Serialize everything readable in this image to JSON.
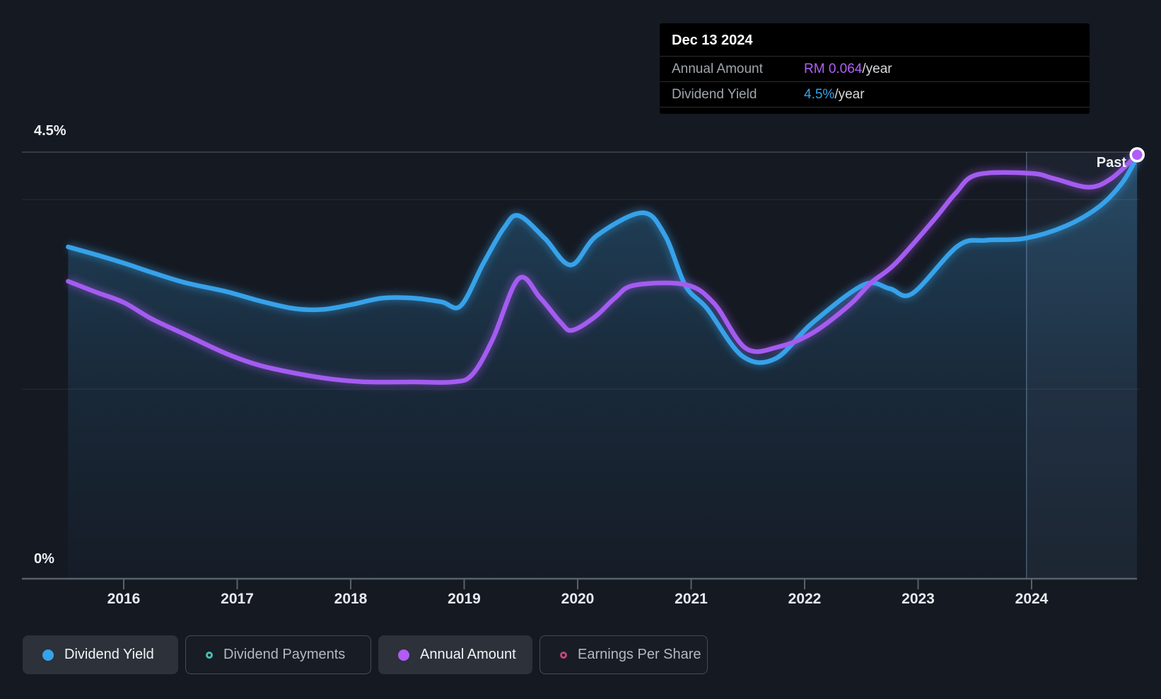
{
  "tooltip": {
    "date": "Dec 13 2024",
    "rows": [
      {
        "label": "Annual Amount",
        "value": "RM 0.064",
        "suffix": "/year",
        "value_color": "#b060f5"
      },
      {
        "label": "Dividend Yield",
        "value": "4.5%",
        "suffix": "/year",
        "value_color": "#37a2ea"
      }
    ]
  },
  "axis": {
    "y_top_label": "4.5%",
    "y_bottom_label": "0%",
    "past_label": "Past",
    "years": [
      "2016",
      "2017",
      "2018",
      "2019",
      "2020",
      "2021",
      "2022",
      "2023",
      "2024"
    ]
  },
  "legend": {
    "items": [
      {
        "label": "Dividend Yield",
        "marker": "dot",
        "color": "#37a2ea",
        "active": true
      },
      {
        "label": "Dividend Payments",
        "marker": "ring",
        "color": "#46c0b2",
        "active": false
      },
      {
        "label": "Annual Amount",
        "marker": "dot",
        "color": "#b05cf5",
        "active": true
      },
      {
        "label": "Earnings Per Share",
        "marker": "ring",
        "color": "#c2457d",
        "active": false
      }
    ],
    "widths": [
      220,
      263,
      218,
      238
    ]
  },
  "colors": {
    "background": "#151922",
    "dividend_yield_line": "#37a2ea",
    "annual_amount_line": "#a45cf0",
    "endpoint_fill": "#b05cf5",
    "endpoint_ring": "#ffffff",
    "grid_major": "rgba(255,255,255,0.20)",
    "grid_minor": "rgba(255,255,255,0.09)",
    "axis_line": "#5a616b",
    "fill_top": "rgba(56,152,212,0.34)",
    "fill_mid": "rgba(48,130,185,0.15)",
    "fill_bottom": "rgba(40,110,160,0.04)",
    "past_band": "rgba(173,205,255,0.055)",
    "divider": "rgba(160,200,240,0.35)"
  },
  "chart_data": {
    "type": "area",
    "title": "Dividend history chart",
    "x_ticks": [
      2016,
      2017,
      2018,
      2019,
      2020,
      2021,
      2022,
      2023,
      2024
    ],
    "x_range": [
      2015.51,
      2024.93
    ],
    "ylim_left_percent": [
      0,
      4.5
    ],
    "ylim_right_rm": [
      0,
      0.0644
    ],
    "y_gridlines_percent": [
      4.5,
      4.0,
      2.0
    ],
    "past_divider_year": 2023.955,
    "legend_position": "bottom",
    "series": [
      {
        "name": "Dividend Yield",
        "axis": "left",
        "unit": "%",
        "last_value": "4.5%/year",
        "points": [
          [
            2015.51,
            3.5
          ],
          [
            2015.75,
            3.42
          ],
          [
            2016.0,
            3.33
          ],
          [
            2016.25,
            3.23
          ],
          [
            2016.55,
            3.12
          ],
          [
            2016.9,
            3.03
          ],
          [
            2017.2,
            2.93
          ],
          [
            2017.5,
            2.85
          ],
          [
            2017.75,
            2.84
          ],
          [
            2018.0,
            2.89
          ],
          [
            2018.28,
            2.96
          ],
          [
            2018.55,
            2.96
          ],
          [
            2018.8,
            2.92
          ],
          [
            2018.97,
            2.88
          ],
          [
            2019.17,
            3.33
          ],
          [
            2019.35,
            3.7
          ],
          [
            2019.48,
            3.83
          ],
          [
            2019.71,
            3.59
          ],
          [
            2019.94,
            3.31
          ],
          [
            2020.17,
            3.62
          ],
          [
            2020.57,
            3.86
          ],
          [
            2020.77,
            3.62
          ],
          [
            2020.95,
            3.09
          ],
          [
            2021.14,
            2.85
          ],
          [
            2021.45,
            2.35
          ],
          [
            2021.74,
            2.32
          ],
          [
            2022.07,
            2.7
          ],
          [
            2022.52,
            3.1
          ],
          [
            2022.75,
            3.06
          ],
          [
            2022.95,
            3.01
          ],
          [
            2023.35,
            3.51
          ],
          [
            2023.6,
            3.57
          ],
          [
            2023.94,
            3.59
          ],
          [
            2024.3,
            3.72
          ],
          [
            2024.6,
            3.93
          ],
          [
            2024.8,
            4.18
          ],
          [
            2024.93,
            4.45
          ]
        ]
      },
      {
        "name": "Annual Amount",
        "axis": "right",
        "unit": "RM",
        "last_value": "RM 0.064/year",
        "points": [
          [
            2015.51,
            0.0449
          ],
          [
            2015.75,
            0.0433
          ],
          [
            2016.0,
            0.0417
          ],
          [
            2016.25,
            0.0392
          ],
          [
            2016.55,
            0.0368
          ],
          [
            2016.9,
            0.034
          ],
          [
            2017.2,
            0.0322
          ],
          [
            2017.55,
            0.0309
          ],
          [
            2017.85,
            0.0301
          ],
          [
            2018.15,
            0.0297
          ],
          [
            2018.55,
            0.0297
          ],
          [
            2018.9,
            0.0297
          ],
          [
            2019.07,
            0.0308
          ],
          [
            2019.25,
            0.0361
          ],
          [
            2019.48,
            0.0453
          ],
          [
            2019.67,
            0.0424
          ],
          [
            2019.85,
            0.0387
          ],
          [
            2019.95,
            0.0375
          ],
          [
            2020.15,
            0.0395
          ],
          [
            2020.33,
            0.0424
          ],
          [
            2020.5,
            0.0443
          ],
          [
            2020.95,
            0.0444
          ],
          [
            2021.2,
            0.0416
          ],
          [
            2021.48,
            0.0348
          ],
          [
            2021.77,
            0.035
          ],
          [
            2022.07,
            0.0371
          ],
          [
            2022.4,
            0.0414
          ],
          [
            2022.58,
            0.0446
          ],
          [
            2022.8,
            0.0476
          ],
          [
            2023.14,
            0.0542
          ],
          [
            2023.33,
            0.0582
          ],
          [
            2023.52,
            0.061
          ],
          [
            2023.99,
            0.0612
          ],
          [
            2024.2,
            0.0604
          ],
          [
            2024.5,
            0.0591
          ],
          [
            2024.7,
            0.0604
          ],
          [
            2024.93,
            0.064
          ]
        ]
      }
    ]
  }
}
